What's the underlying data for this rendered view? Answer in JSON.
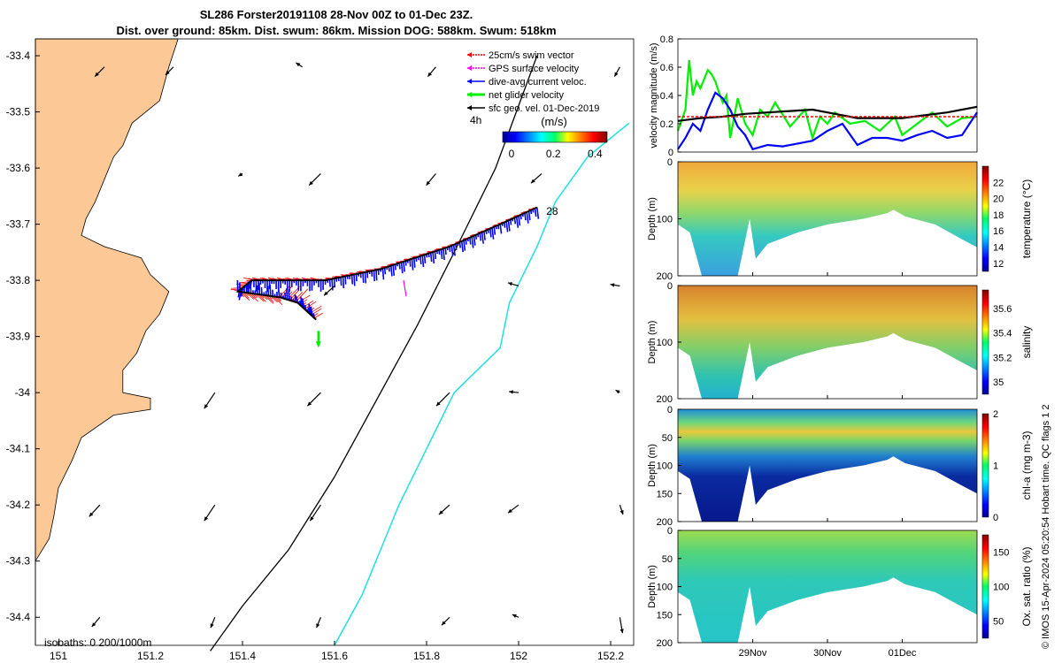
{
  "title": {
    "line1": "SL286 Forster20191108 28-Nov 00Z to 01-Dec 23Z.",
    "line2": "Dist. over ground: 85km. Dist. swum: 86km. Mission DOG: 588km. Swum: 518km"
  },
  "side_note": "© IMOS 15-Apr-2024 05:20:54 Hobart time. QC flags 1  2",
  "colors": {
    "land": "#fbc896",
    "swim_vector": "#ff0000",
    "gps_velocity": "#ff00ff",
    "dive_avg_current": "#0000ff",
    "net_velocity": "#00ee00",
    "sfc_geo_velocity": "#000000",
    "isobath_1000": "#20e0e0",
    "isobath_200": "#000000"
  },
  "chart_data": [
    {
      "type": "map",
      "xlim": [
        150.95,
        152.25
      ],
      "ylim": [
        -34.45,
        -33.37
      ],
      "xticks": [
        151,
        151.2,
        151.4,
        151.6,
        151.8,
        152,
        152.2
      ],
      "xtick_labels": [
        "151",
        "151.2",
        "151.4",
        "151.6",
        "151.8",
        "152",
        "152.2"
      ],
      "yticks": [
        -33.4,
        -33.5,
        -33.6,
        -33.7,
        -33.8,
        -33.9,
        -34,
        -34.1,
        -34.2,
        -34.3,
        -34.4
      ],
      "ytick_labels": [
        "-33.4",
        "-33.5",
        "-33.6",
        "-33.7",
        "-33.8",
        "-33.9",
        "-34",
        "-34.1",
        "-34.2",
        "-34.3",
        "-34.4"
      ],
      "legend": {
        "placement": "top-right",
        "entries": [
          "25cm/s swim vector",
          "GPS surface velocity",
          "dive-avg current veloc.",
          "net glider velocity",
          "sfc geo. vel. 01-Dec-2019"
        ],
        "extra_label": "4h"
      },
      "colorbar": {
        "label": "(m/s)",
        "ticks": [
          0,
          0.2,
          0.4
        ],
        "tick_labels": [
          "0",
          "0.2",
          "0.4"
        ],
        "range": [
          0,
          0.5
        ]
      },
      "track_start_label": "28",
      "isobath_note": "isobaths: 0   200/1000m",
      "coastline": [
        [
          150.95,
          -33.37
        ],
        [
          151.26,
          -33.37
        ],
        [
          151.24,
          -33.42
        ],
        [
          151.22,
          -33.48
        ],
        [
          151.19,
          -33.5
        ],
        [
          151.16,
          -33.52
        ],
        [
          151.14,
          -33.56
        ],
        [
          151.12,
          -33.58
        ],
        [
          151.1,
          -33.62
        ],
        [
          151.08,
          -33.66
        ],
        [
          151.06,
          -33.69
        ],
        [
          151.05,
          -33.72
        ],
        [
          151.1,
          -33.74
        ],
        [
          151.18,
          -33.76
        ],
        [
          151.2,
          -33.79
        ],
        [
          151.24,
          -33.82
        ],
        [
          151.22,
          -33.86
        ],
        [
          151.19,
          -33.89
        ],
        [
          151.17,
          -33.93
        ],
        [
          151.14,
          -33.96
        ],
        [
          151.14,
          -34.0
        ],
        [
          151.2,
          -34.01
        ],
        [
          151.2,
          -34.03
        ],
        [
          151.12,
          -34.04
        ],
        [
          151.05,
          -34.08
        ],
        [
          151.03,
          -34.12
        ],
        [
          151.0,
          -34.17
        ],
        [
          150.99,
          -34.22
        ],
        [
          150.98,
          -34.26
        ],
        [
          150.95,
          -34.3
        ]
      ],
      "track_nodes": [
        [
          152.04,
          -33.67
        ],
        [
          151.96,
          -33.7
        ],
        [
          151.85,
          -33.74
        ],
        [
          151.7,
          -33.78
        ],
        [
          151.58,
          -33.8
        ],
        [
          151.42,
          -33.8
        ],
        [
          151.39,
          -33.82
        ],
        [
          151.48,
          -33.83
        ],
        [
          151.52,
          -33.84
        ],
        [
          151.56,
          -33.87
        ]
      ],
      "isobath_200": [
        [
          152.04,
          -33.4
        ],
        [
          151.95,
          -33.6
        ],
        [
          151.86,
          -33.75
        ],
        [
          151.78,
          -33.88
        ],
        [
          151.7,
          -34.0
        ],
        [
          151.6,
          -34.15
        ],
        [
          151.5,
          -34.28
        ],
        [
          151.4,
          -34.38
        ],
        [
          151.33,
          -34.46
        ]
      ],
      "isobath_1000": [
        [
          152.24,
          -33.52
        ],
        [
          152.15,
          -33.58
        ],
        [
          152.08,
          -33.66
        ],
        [
          152.04,
          -33.74
        ],
        [
          151.98,
          -33.84
        ],
        [
          151.96,
          -33.92
        ],
        [
          151.86,
          -34.0
        ],
        [
          151.8,
          -34.1
        ],
        [
          151.74,
          -34.2
        ],
        [
          151.7,
          -34.28
        ],
        [
          151.66,
          -34.36
        ],
        [
          151.6,
          -34.45
        ]
      ],
      "geo_vectors": [
        {
          "x": 151.1,
          "y": -33.42,
          "u": -0.18,
          "v": -0.18
        },
        {
          "x": 151.25,
          "y": -33.42,
          "u": -0.15,
          "v": -0.15
        },
        {
          "x": 151.53,
          "y": -33.42,
          "u": -0.12,
          "v": 0.08
        },
        {
          "x": 151.82,
          "y": -33.42,
          "u": -0.15,
          "v": -0.18
        },
        {
          "x": 152.22,
          "y": -33.42,
          "u": -0.1,
          "v": -0.18
        },
        {
          "x": 151.4,
          "y": -33.61,
          "u": -0.08,
          "v": -0.05
        },
        {
          "x": 151.57,
          "y": -33.61,
          "u": -0.22,
          "v": -0.22
        },
        {
          "x": 151.82,
          "y": -33.61,
          "u": -0.18,
          "v": -0.22
        },
        {
          "x": 152.05,
          "y": -33.61,
          "u": -0.2,
          "v": -0.18
        },
        {
          "x": 151.6,
          "y": -33.81,
          "u": -0.2,
          "v": -0.18
        },
        {
          "x": 152.0,
          "y": -33.81,
          "u": -0.2,
          "v": 0.06
        },
        {
          "x": 152.22,
          "y": -33.81,
          "u": -0.18,
          "v": 0.03
        },
        {
          "x": 151.34,
          "y": -34.0,
          "u": -0.2,
          "v": -0.3
        },
        {
          "x": 151.57,
          "y": -34.0,
          "u": -0.25,
          "v": -0.25
        },
        {
          "x": 151.85,
          "y": -34.0,
          "u": -0.25,
          "v": -0.25
        },
        {
          "x": 152.0,
          "y": -34.0,
          "u": -0.18,
          "v": 0.02
        },
        {
          "x": 152.22,
          "y": -34.0,
          "u": -0.08,
          "v": 0.05
        },
        {
          "x": 151.09,
          "y": -34.2,
          "u": -0.2,
          "v": -0.22
        },
        {
          "x": 151.34,
          "y": -34.2,
          "u": -0.2,
          "v": -0.3
        },
        {
          "x": 151.57,
          "y": -34.2,
          "u": -0.2,
          "v": -0.3
        },
        {
          "x": 151.85,
          "y": -34.2,
          "u": -0.2,
          "v": -0.18
        },
        {
          "x": 152.0,
          "y": -34.2,
          "u": -0.2,
          "v": -0.15
        },
        {
          "x": 152.22,
          "y": -34.2,
          "u": 0.06,
          "v": -0.18
        },
        {
          "x": 151.09,
          "y": -34.4,
          "u": -0.15,
          "v": -0.18
        },
        {
          "x": 151.34,
          "y": -34.4,
          "u": -0.08,
          "v": -0.2
        },
        {
          "x": 151.57,
          "y": -34.4,
          "u": -0.08,
          "v": -0.2
        },
        {
          "x": 151.85,
          "y": -34.4,
          "u": -0.15,
          "v": -0.15
        },
        {
          "x": 152.0,
          "y": -34.4,
          "u": -0.12,
          "v": 0.05
        },
        {
          "x": 152.22,
          "y": -34.4,
          "u": 0.05,
          "v": -0.3
        }
      ]
    },
    {
      "type": "line",
      "ylabel": "velocity magnitude (m/s)",
      "xlim": [
        28,
        32
      ],
      "ylim": [
        0,
        0.8
      ],
      "yticks": [
        0,
        0.2,
        0.4,
        0.6,
        0.8
      ],
      "series": [
        {
          "color": "#00ee00",
          "x": [
            28,
            28.1,
            28.15,
            28.2,
            28.25,
            28.3,
            28.4,
            28.45,
            28.5,
            28.55,
            28.6,
            28.65,
            28.7,
            28.8,
            28.9,
            29.0,
            29.1,
            29.2,
            29.3,
            29.5,
            29.7,
            29.8,
            29.9,
            30.0,
            30.1,
            30.3,
            30.5,
            30.7,
            30.9,
            31.0,
            31.2,
            31.4,
            31.6,
            31.8,
            32
          ],
          "y": [
            0.15,
            0.3,
            0.65,
            0.4,
            0.5,
            0.45,
            0.58,
            0.55,
            0.5,
            0.42,
            0.35,
            0.4,
            0.1,
            0.38,
            0.2,
            0.12,
            0.3,
            0.25,
            0.35,
            0.18,
            0.3,
            0.1,
            0.25,
            0.2,
            0.28,
            0.2,
            0.22,
            0.15,
            0.25,
            0.12,
            0.2,
            0.28,
            0.18,
            0.24,
            0.25
          ]
        },
        {
          "color": "#0000ff",
          "x": [
            28,
            28.1,
            28.2,
            28.3,
            28.4,
            28.5,
            28.6,
            28.7,
            28.8,
            28.9,
            29.0,
            29.2,
            29.4,
            29.6,
            29.8,
            30.0,
            30.2,
            30.4,
            30.6,
            30.8,
            31.0,
            31.2,
            31.4,
            31.6,
            31.8,
            32
          ],
          "y": [
            0.02,
            0.1,
            0.2,
            0.15,
            0.3,
            0.42,
            0.38,
            0.3,
            0.18,
            0.12,
            0.02,
            0.05,
            0.04,
            0.06,
            0.08,
            0.15,
            0.2,
            0.05,
            0.1,
            0.1,
            0.08,
            0.12,
            0.15,
            0.1,
            0.12,
            0.28
          ]
        },
        {
          "color": "#000000",
          "x": [
            28,
            28.3,
            28.6,
            28.9,
            29.2,
            29.5,
            29.8,
            30.1,
            30.4,
            30.7,
            31.0,
            31.3,
            31.6,
            32
          ],
          "y": [
            0.22,
            0.24,
            0.25,
            0.27,
            0.28,
            0.29,
            0.3,
            0.27,
            0.24,
            0.24,
            0.24,
            0.26,
            0.28,
            0.32
          ]
        },
        {
          "color": "#ff0000",
          "dash": true,
          "x": [
            28,
            32
          ],
          "y": [
            0.25,
            0.25
          ]
        }
      ]
    },
    {
      "type": "heatmap",
      "ylabel": "Depth (m)",
      "clabel": "temperature (°C)",
      "ylim": [
        200,
        0
      ],
      "yticks": [
        0,
        100,
        200
      ],
      "cticks": [
        12,
        14,
        16,
        18,
        20,
        22
      ],
      "crange": [
        11,
        24
      ]
    },
    {
      "type": "heatmap",
      "ylabel": "Depth (m)",
      "clabel": "salinity",
      "ylim": [
        200,
        0
      ],
      "yticks": [
        0,
        100,
        200
      ],
      "cticks": [
        35,
        35.2,
        35.4,
        35.6
      ],
      "crange": [
        34.9,
        35.75
      ]
    },
    {
      "type": "heatmap",
      "ylabel": "Depth (m)",
      "clabel": "chl-a (mg m-3)",
      "ylim": [
        200,
        0
      ],
      "yticks": [
        0,
        50,
        100,
        150,
        200
      ],
      "cticks": [
        0,
        1,
        2
      ],
      "crange": [
        0,
        2
      ]
    },
    {
      "type": "heatmap",
      "ylabel": "Depth (m)",
      "clabel": "Ox. sat. ratio (%)",
      "ylim": [
        200,
        0
      ],
      "yticks": [
        0,
        50,
        100,
        150,
        200
      ],
      "cticks": [
        50,
        100,
        150
      ],
      "crange": [
        25,
        175
      ],
      "xticks": [
        29,
        30,
        31
      ],
      "xtick_labels": [
        "29Nov",
        "30Nov",
        "01Dec"
      ]
    }
  ]
}
